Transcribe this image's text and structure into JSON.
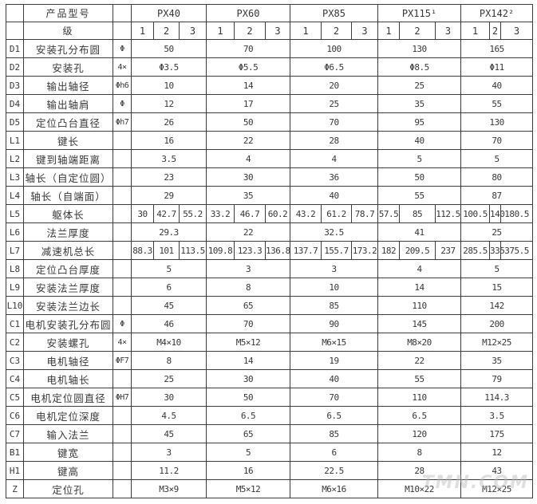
{
  "watermark": {
    "text": "TMN.COM"
  },
  "table": {
    "header": {
      "product_label": "产品型号",
      "stage_label": "级",
      "models": [
        "PX40",
        "PX60",
        "PX85",
        "PX115¹",
        "PX142²"
      ],
      "stages": [
        "1",
        "2",
        "3"
      ]
    },
    "rows": [
      {
        "id": "D1",
        "label": "安装孔分布圆",
        "symbol": "Φ",
        "values": [
          "50",
          "70",
          "100",
          "130",
          "165"
        ]
      },
      {
        "id": "D2",
        "label": "安装孔",
        "symbol": "4×",
        "values": [
          "Φ3.5",
          "Φ5.5",
          "Φ6.5",
          "Φ8.5",
          "Φ11"
        ]
      },
      {
        "id": "D3",
        "label": "输出轴径",
        "symbol": "Φh6",
        "values": [
          "10",
          "14",
          "20",
          "25",
          "40"
        ]
      },
      {
        "id": "D4",
        "label": "输出轴肩",
        "symbol": "Φ",
        "values": [
          "12",
          "17",
          "25",
          "35",
          "55"
        ]
      },
      {
        "id": "D5",
        "label": "定位凸台直径",
        "symbol": "Φh7",
        "values": [
          "26",
          "50",
          "70",
          "95",
          "130"
        ]
      },
      {
        "id": "L1",
        "label": "键长",
        "symbol": "",
        "values": [
          "16",
          "22",
          "28",
          "40",
          "70"
        ]
      },
      {
        "id": "L2",
        "label": "键到轴端距离",
        "symbol": "",
        "values": [
          "3.5",
          "4",
          "4",
          "5",
          "5"
        ]
      },
      {
        "id": "L3",
        "label": "轴长（自定位圆）",
        "symbol": "",
        "values": [
          "23",
          "30",
          "36",
          "50",
          "80"
        ]
      },
      {
        "id": "L4",
        "label": "轴长（自端面）",
        "symbol": "",
        "values": [
          "29",
          "35",
          "40",
          "55",
          "87"
        ]
      },
      {
        "id": "L5",
        "label": "躯体长",
        "symbol": "",
        "values": [
          "30",
          "42.7",
          "55.2",
          "33.2",
          "46.7",
          "60.2",
          "43.2",
          "61.2",
          "78.7",
          "57.5",
          "85",
          "112.5",
          "100.5",
          "140",
          "180.5"
        ]
      },
      {
        "id": "L6",
        "label": "法兰厚度",
        "symbol": "",
        "values": [
          "29.3",
          "22",
          "32.5",
          "41",
          "25"
        ]
      },
      {
        "id": "L7",
        "label": "减速机总长",
        "symbol": "",
        "values": [
          "88.3",
          "101",
          "113.5",
          "109.8",
          "123.3",
          "136.8",
          "137.7",
          "155.7",
          "173.2",
          "182",
          "209.5",
          "237",
          "285.5",
          "335",
          "375.5"
        ]
      },
      {
        "id": "L8",
        "label": "定位凸台厚度",
        "symbol": "",
        "values": [
          "5",
          "3",
          "3",
          "4",
          "5"
        ]
      },
      {
        "id": "L9",
        "label": "安装法兰厚度",
        "symbol": "",
        "values": [
          "6",
          "8",
          "10",
          "14",
          "15"
        ]
      },
      {
        "id": "L10",
        "label": "安装法兰边长",
        "symbol": "",
        "values": [
          "45",
          "65",
          "85",
          "110",
          "142"
        ]
      },
      {
        "id": "C1",
        "label": "电机安装孔分布圆",
        "symbol": "Φ",
        "values": [
          "46",
          "70",
          "90",
          "145",
          "200"
        ]
      },
      {
        "id": "C2",
        "label": "安装螺孔",
        "symbol": "4×",
        "values": [
          "M4×10",
          "M5×12",
          "M6×15",
          "M8×20",
          "M12×25"
        ]
      },
      {
        "id": "C3",
        "label": "电机轴径",
        "symbol": "ΦF7",
        "values": [
          "8",
          "14",
          "19",
          "22",
          "35"
        ]
      },
      {
        "id": "C4",
        "label": "电机轴长",
        "symbol": "",
        "values": [
          "25",
          "30",
          "40",
          "55",
          "79"
        ]
      },
      {
        "id": "C5",
        "label": "电机定位圆直径",
        "symbol": "ΦH7",
        "values": [
          "30",
          "50",
          "70",
          "110",
          "114.3"
        ]
      },
      {
        "id": "C6",
        "label": "电机定位深度",
        "symbol": "",
        "values": [
          "4.5",
          "6.5",
          "6.5",
          "6.5",
          "3.5"
        ]
      },
      {
        "id": "C7",
        "label": "输入法兰",
        "symbol": "",
        "values": [
          "45",
          "65",
          "85",
          "120",
          "175"
        ]
      },
      {
        "id": "B1",
        "label": "键宽",
        "symbol": "",
        "values": [
          "3",
          "5",
          "6",
          "8",
          "12"
        ]
      },
      {
        "id": "H1",
        "label": "键高",
        "symbol": "",
        "values": [
          "11.2",
          "16",
          "22.5",
          "28",
          "43"
        ]
      },
      {
        "id": "Z",
        "label": "定位孔",
        "symbol": "",
        "values": [
          "M3×9",
          "M5×12",
          "M6×16",
          "M10×22",
          "M12×25"
        ]
      }
    ]
  }
}
